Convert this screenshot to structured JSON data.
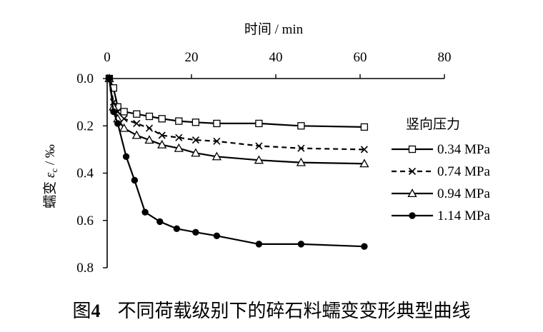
{
  "chart_data": {
    "type": "line",
    "title": "",
    "xlabel": "时间 / min",
    "ylabel_prefix": "蠕变 ",
    "ylabel_symbol": "ε",
    "ylabel_subscript": "c",
    "ylabel_suffix": " / ‰",
    "x_axis_position": "top",
    "y_axis_inverted": true,
    "xlim": [
      0,
      80
    ],
    "ylim": [
      0,
      0.8
    ],
    "xticks": [
      0,
      20,
      40,
      60,
      80
    ],
    "xtick_labels": [
      "0",
      "20",
      "40",
      "60",
      "80"
    ],
    "yticks": [
      0,
      0.2,
      0.4,
      0.6,
      0.8
    ],
    "ytick_labels": [
      "0.0",
      "0.2",
      "0.4",
      "0.6",
      "0.8"
    ],
    "grid": false,
    "legend_title": "竖向压力",
    "legend_position": "right",
    "series": [
      {
        "name": "0.34 MPa",
        "marker": "open-square",
        "dash": "solid",
        "x": [
          0.5,
          1.5,
          2.5,
          4,
          7,
          10,
          13,
          17,
          21,
          26,
          36,
          46,
          61
        ],
        "y": [
          0.0,
          0.04,
          0.12,
          0.14,
          0.15,
          0.16,
          0.17,
          0.18,
          0.185,
          0.19,
          0.19,
          0.2,
          0.205
        ]
      },
      {
        "name": "0.74 MPa",
        "marker": "cross",
        "dash": "dashed",
        "x": [
          0.5,
          1.5,
          2.5,
          4,
          7,
          10,
          13,
          17,
          21,
          26,
          36,
          46,
          61
        ],
        "y": [
          0.0,
          0.1,
          0.14,
          0.17,
          0.19,
          0.21,
          0.24,
          0.25,
          0.26,
          0.265,
          0.285,
          0.295,
          0.3
        ]
      },
      {
        "name": "0.94 MPa",
        "marker": "open-triangle",
        "dash": "solid",
        "x": [
          0.5,
          1.5,
          2.5,
          4,
          7,
          10,
          13,
          17,
          21,
          26,
          36,
          46,
          61
        ],
        "y": [
          0.0,
          0.12,
          0.17,
          0.21,
          0.24,
          0.26,
          0.28,
          0.295,
          0.315,
          0.33,
          0.345,
          0.355,
          0.36
        ]
      },
      {
        "name": "1.14 MPa",
        "marker": "filled-circle",
        "dash": "solid",
        "x": [
          0.5,
          1.5,
          2.5,
          4.5,
          6.5,
          9,
          12.5,
          16.5,
          21,
          26,
          36,
          46,
          61
        ],
        "y": [
          0.0,
          0.14,
          0.19,
          0.33,
          0.43,
          0.565,
          0.605,
          0.635,
          0.65,
          0.665,
          0.7,
          0.7,
          0.71
        ]
      }
    ]
  },
  "caption": {
    "label": "图",
    "number": "4",
    "text": "不同荷载级别下的碎石料蠕变变形典型曲线"
  }
}
